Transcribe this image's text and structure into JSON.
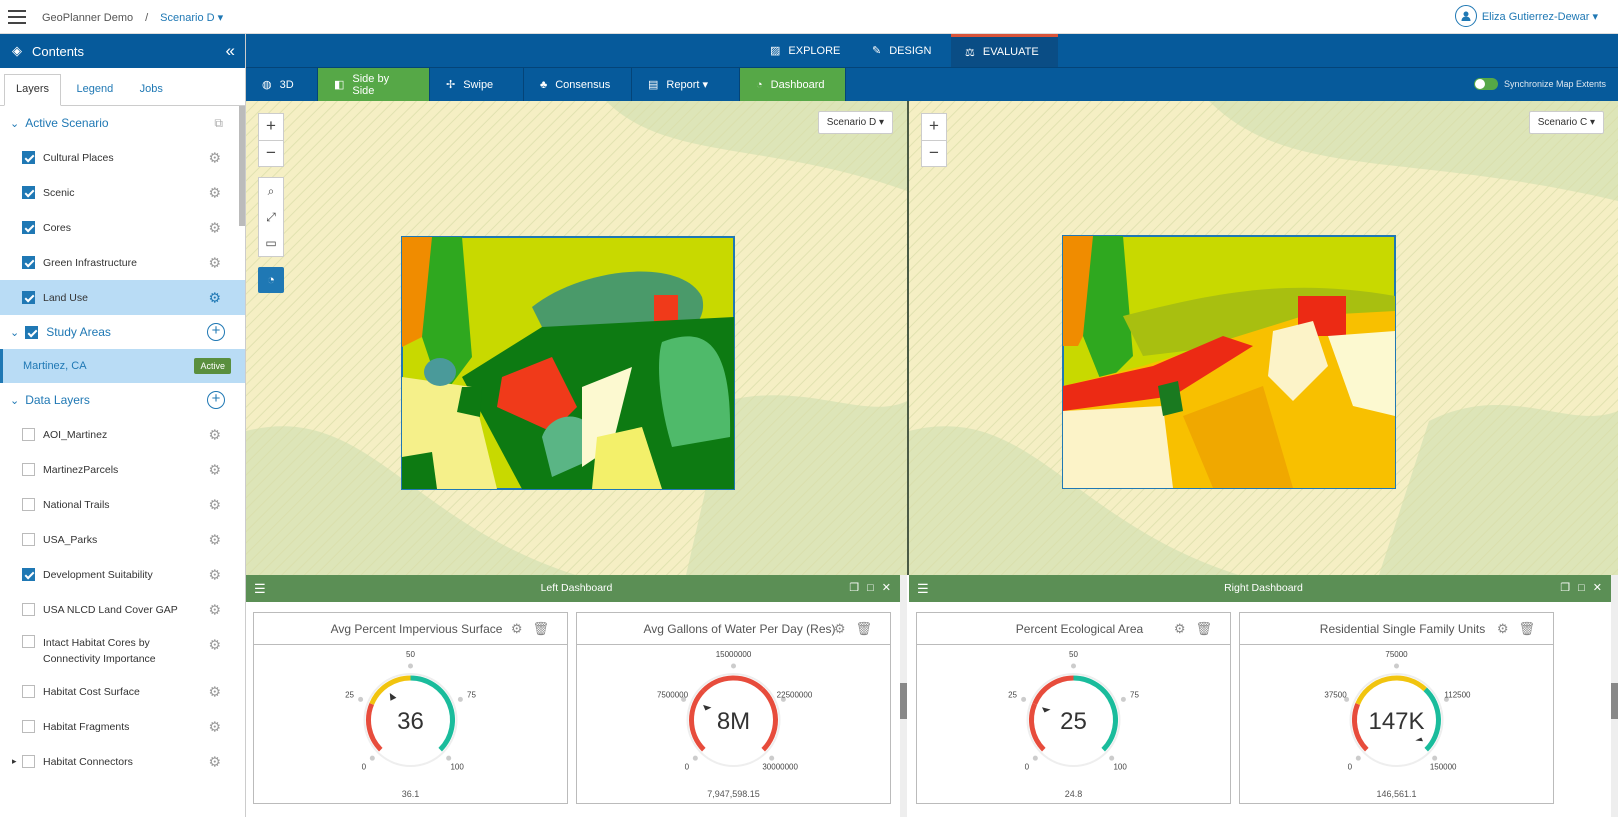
{
  "header": {
    "app": "GeoPlanner Demo",
    "separator": "/",
    "scenario": "Scenario D ▾",
    "user": "Eliza Gutierrez-Dewar ▾"
  },
  "sidebar": {
    "title": "Contents",
    "collapse": "«",
    "tabs": [
      "Layers",
      "Legend",
      "Jobs"
    ],
    "active_scenario": "Active Scenario",
    "scenario_layers": [
      {
        "label": "Cultural Places",
        "checked": true
      },
      {
        "label": "Scenic",
        "checked": true
      },
      {
        "label": "Cores",
        "checked": true
      },
      {
        "label": "Green Infrastructure",
        "checked": true
      },
      {
        "label": "Land Use",
        "checked": true
      }
    ],
    "study_areas": "Study Areas",
    "study_area": {
      "name": "Martinez, CA",
      "badge": "Active"
    },
    "data_layers": "Data Layers",
    "layers": [
      {
        "label": "AOI_Martinez",
        "checked": false
      },
      {
        "label": "MartinezParcels",
        "checked": false
      },
      {
        "label": "National Trails",
        "checked": false
      },
      {
        "label": "USA_Parks",
        "checked": false
      },
      {
        "label": "Development Suitability",
        "checked": true
      },
      {
        "label": "USA NLCD Land Cover GAP",
        "checked": false
      },
      {
        "label": "Intact Habitat Cores by Connectivity Importance",
        "checked": false
      },
      {
        "label": "Habitat Cost Surface",
        "checked": false
      },
      {
        "label": "Habitat Fragments",
        "checked": false
      },
      {
        "label": "Habitat Connectors",
        "checked": false
      }
    ]
  },
  "modes": [
    "EXPLORE",
    "DESIGN",
    "EVALUATE"
  ],
  "toolbar": {
    "items": [
      "3D",
      "Side by Side",
      "Swipe",
      "Consensus",
      "Report ▾",
      "Dashboard"
    ],
    "sync": "Synchronize Map Extents"
  },
  "maps": {
    "left_scenario": "Scenario D ▾",
    "right_scenario": "Scenario C ▾"
  },
  "dashboards": {
    "left_title": "Left Dashboard",
    "right_title": "Right Dashboard",
    "gauges": [
      {
        "title": "Avg Percent Impervious Surface",
        "display": "36",
        "value": 36.1,
        "exact": "36.1",
        "min": "0",
        "max": "100",
        "ticks": [
          "0",
          "25",
          "50",
          "75",
          "100"
        ],
        "min_n": 0,
        "max_n": 100,
        "colors": [
          "#e74c3c",
          "#f1c40f",
          "#1abc9c"
        ],
        "breaks": [
          0.25,
          0.5
        ]
      },
      {
        "title": "Avg Gallons of Water Per Day (Res)",
        "display": "8M",
        "value": 7947598.15,
        "exact": "7,947,598.15",
        "ticks": [
          "0",
          "7500000",
          "15000000",
          "22500000",
          "30000000"
        ],
        "min_n": 0,
        "max_n": 30000000,
        "colors": [
          "#e74c3c",
          "#e74c3c",
          "#e74c3c"
        ],
        "breaks": [
          0.33,
          0.66
        ]
      },
      {
        "title": "Percent Ecological Area",
        "display": "25",
        "value": 24.8,
        "exact": "24.8",
        "ticks": [
          "0",
          "25",
          "50",
          "75",
          "100"
        ],
        "min_n": 0,
        "max_n": 100,
        "colors": [
          "#e74c3c",
          "#e74c3c",
          "#1abc9c"
        ],
        "breaks": [
          0.25,
          0.5
        ]
      },
      {
        "title": "Residential Single Family Units",
        "display": "147K",
        "value": 146561.1,
        "exact": "146,561.1",
        "ticks": [
          "0",
          "37500",
          "75000",
          "112500",
          "150000"
        ],
        "min_n": 0,
        "max_n": 150000,
        "colors": [
          "#e74c3c",
          "#f1c40f",
          "#1abc9c"
        ],
        "breaks": [
          0.25,
          0.66
        ]
      }
    ]
  }
}
